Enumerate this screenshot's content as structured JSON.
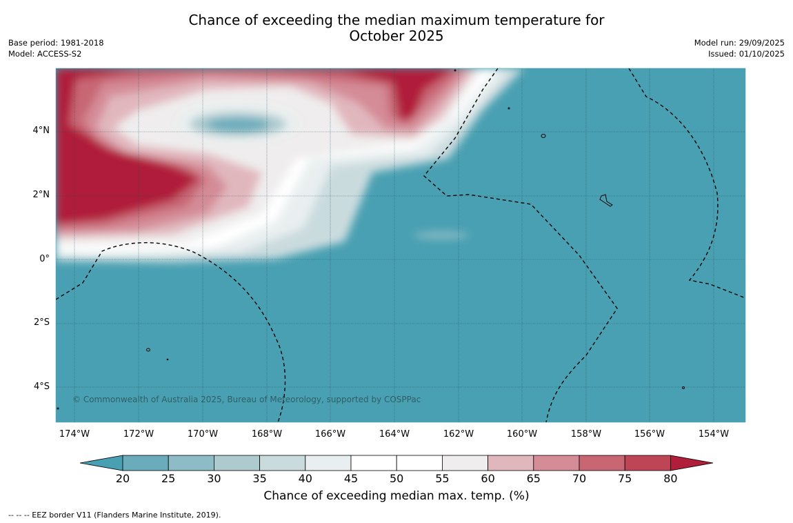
{
  "title_line1": "Chance of exceeding the median maximum temperature for",
  "title_line2": "October 2025",
  "base_period": "Base period: 1981-2018",
  "model": "Model: ACCESS-S2",
  "model_run": "Model run: 29/09/2025",
  "issued": "Issued: 01/10/2025",
  "lat_labels": [
    "4°N",
    "2°N",
    "0°",
    "2°S",
    "4°S"
  ],
  "lon_labels": [
    "174°W",
    "172°W",
    "170°W",
    "168°W",
    "166°W",
    "164°W",
    "162°W",
    "160°W",
    "158°W",
    "156°W",
    "154°W"
  ],
  "copyright": "© Commonwealth of Australia 2025, Bureau of Meteorology, supported by COSPPac",
  "colorbar": {
    "ticks": [
      "20",
      "25",
      "30",
      "35",
      "40",
      "45",
      "50",
      "55",
      "60",
      "65",
      "70",
      "75",
      "80"
    ],
    "colors": [
      "#49a0b2",
      "#6aacbb",
      "#8ebcc6",
      "#adcacf",
      "#cadbde",
      "#e9eff0",
      "#ffffff",
      "#ffffff",
      "#efeded",
      "#e1b7be",
      "#d48c97",
      "#c86674",
      "#bd4556",
      "#b01e3b"
    ],
    "label": "Chance of exceeding median max. temp. (%)"
  },
  "footnote": "--  --  -- EEZ border V11 (Flanders Marine Institute, 2019)."
}
